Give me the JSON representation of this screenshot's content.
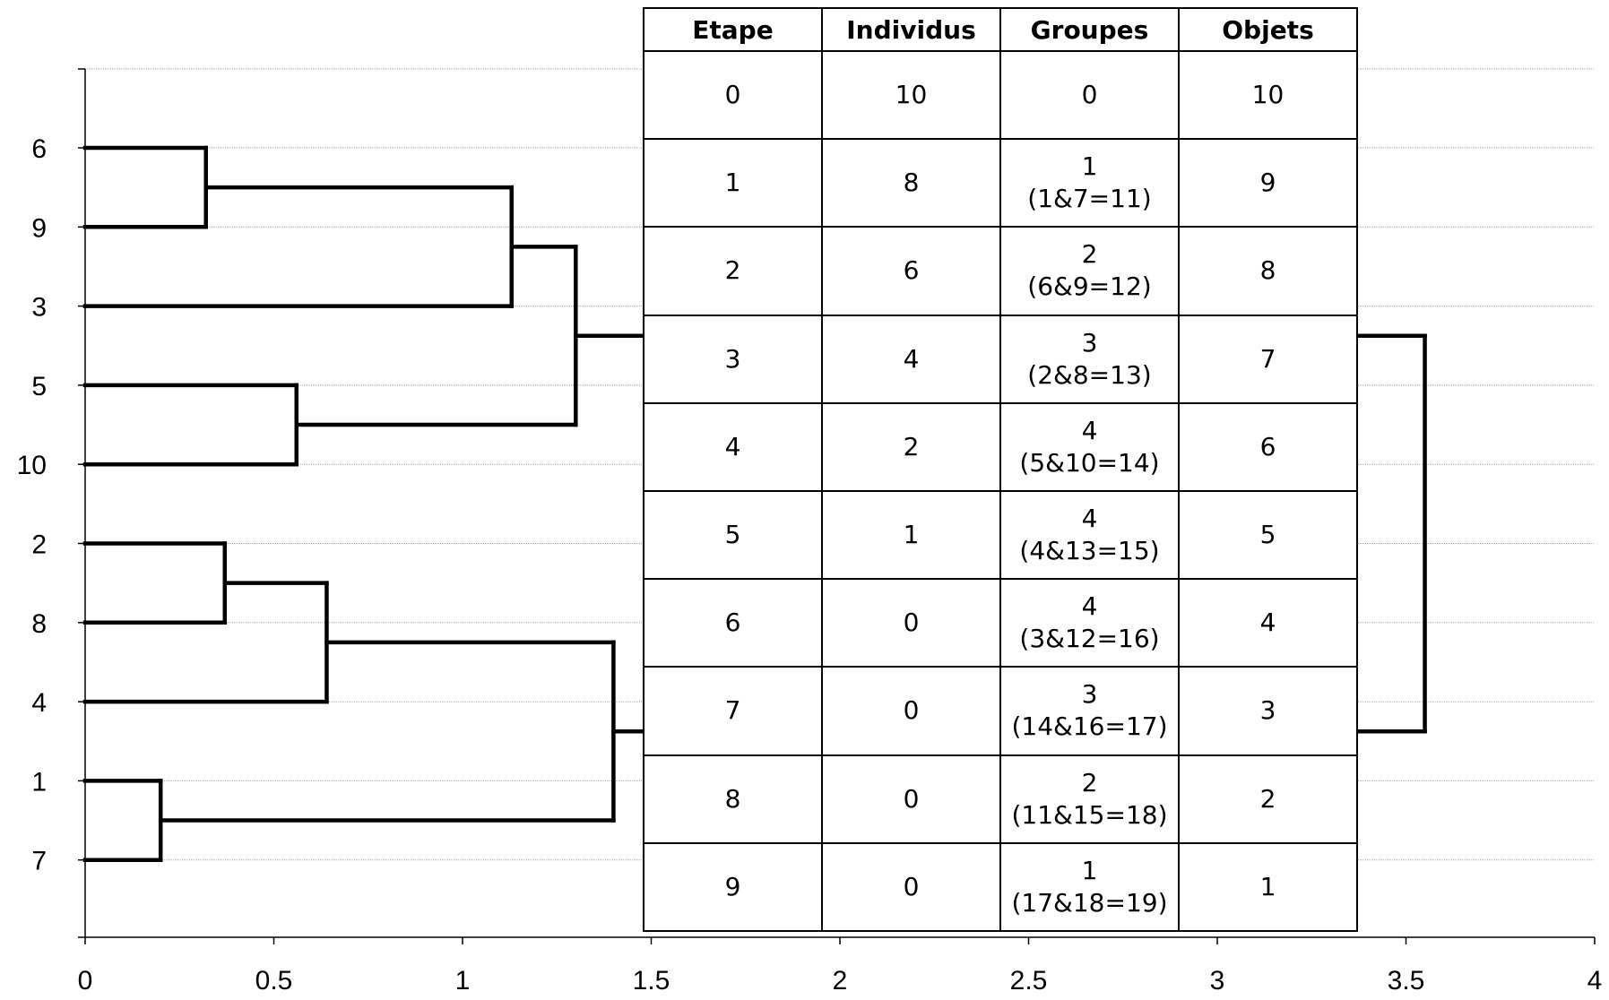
{
  "dendrogram": {
    "axis_ticks": [
      "0",
      "0.5",
      "1",
      "1.5",
      "2",
      "2.5",
      "3",
      "3.5",
      "4"
    ],
    "xlim": [
      0,
      4
    ],
    "leaves": [
      "6",
      "9",
      "3",
      "5",
      "10",
      "2",
      "8",
      "4",
      "1",
      "7"
    ],
    "merges": [
      {
        "group": "11",
        "left": "1",
        "right": "7",
        "height": 0.2
      },
      {
        "group": "12",
        "left": "6",
        "right": "9",
        "height": 0.32
      },
      {
        "group": "13",
        "left": "2",
        "right": "8",
        "height": 0.37
      },
      {
        "group": "14",
        "left": "5",
        "right": "10",
        "height": 0.56
      },
      {
        "group": "15",
        "left": "4",
        "right": "13",
        "height": 0.64
      },
      {
        "group": "16",
        "left": "3",
        "right": "12",
        "height": 1.13
      },
      {
        "group": "17",
        "left": "14",
        "right": "16",
        "height": 1.3
      },
      {
        "group": "18",
        "left": "11",
        "right": "15",
        "height": 1.4
      },
      {
        "group": "19",
        "left": "17",
        "right": "18",
        "height": 3.55
      }
    ],
    "gridlines": true,
    "color": "#000000"
  },
  "table": {
    "headers": [
      "Etape",
      "Individus",
      "Groupes",
      "Objets"
    ],
    "rows": [
      {
        "etape": "0",
        "individus": "10",
        "groupes": "0",
        "groupes_detail": "",
        "objets": "10"
      },
      {
        "etape": "1",
        "individus": "8",
        "groupes": "1",
        "groupes_detail": "(1&7=11)",
        "objets": "9"
      },
      {
        "etape": "2",
        "individus": "6",
        "groupes": "2",
        "groupes_detail": "(6&9=12)",
        "objets": "8"
      },
      {
        "etape": "3",
        "individus": "4",
        "groupes": "3",
        "groupes_detail": "(2&8=13)",
        "objets": "7"
      },
      {
        "etape": "4",
        "individus": "2",
        "groupes": "4",
        "groupes_detail": "(5&10=14)",
        "objets": "6"
      },
      {
        "etape": "5",
        "individus": "1",
        "groupes": "4",
        "groupes_detail": "(4&13=15)",
        "objets": "5"
      },
      {
        "etape": "6",
        "individus": "0",
        "groupes": "4",
        "groupes_detail": "(3&12=16)",
        "objets": "4"
      },
      {
        "etape": "7",
        "individus": "0",
        "groupes": "3",
        "groupes_detail": "(14&16=17)",
        "objets": "3"
      },
      {
        "etape": "8",
        "individus": "0",
        "groupes": "2",
        "groupes_detail": "(11&15=18)",
        "objets": "2"
      },
      {
        "etape": "9",
        "individus": "0",
        "groupes": "1",
        "groupes_detail": "(17&18=19)",
        "objets": "1"
      }
    ]
  }
}
